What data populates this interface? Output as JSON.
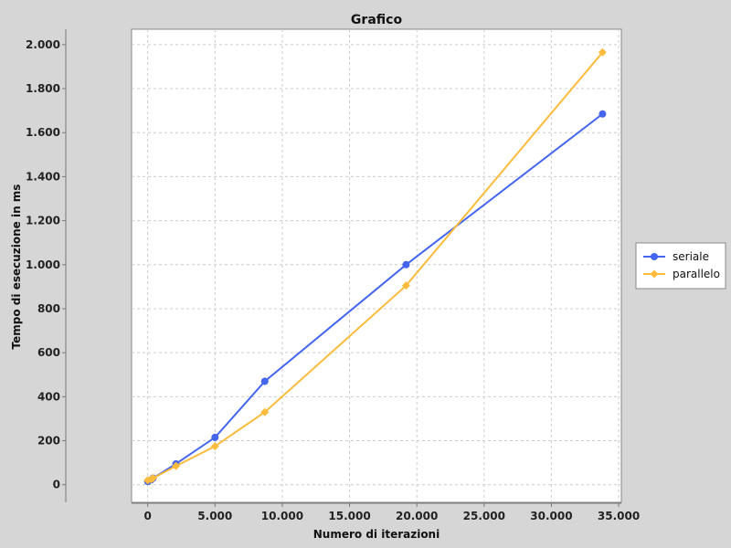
{
  "chart_data": {
    "type": "line",
    "title": "Grafico",
    "xlabel": "Numero di iterazioni",
    "ylabel": "Tempo di esecuzione in ms",
    "xlim": [
      -1200,
      35200
    ],
    "ylim": [
      -80,
      2070
    ],
    "x_ticks": [
      0,
      5000,
      10000,
      15000,
      20000,
      25000,
      30000,
      35000
    ],
    "x_tick_labels": [
      "0",
      "5.000",
      "10.000",
      "15.000",
      "20.000",
      "25.000",
      "30.000",
      "35.000"
    ],
    "y_ticks": [
      0,
      200,
      400,
      600,
      800,
      1000,
      1200,
      1400,
      1600,
      1800,
      2000
    ],
    "y_tick_labels": [
      "0",
      "200",
      "400",
      "600",
      "800",
      "1.000",
      "1.200",
      "1.400",
      "1.600",
      "1.800",
      "2.000"
    ],
    "grid": true,
    "legend_position": "right",
    "series": [
      {
        "name": "seriale",
        "color": "#4466ee",
        "marker": "circle",
        "points": [
          [
            0,
            15
          ],
          [
            250,
            22
          ],
          [
            400,
            30
          ],
          [
            2100,
            95
          ],
          [
            5000,
            215
          ],
          [
            8700,
            470
          ],
          [
            19200,
            1000
          ],
          [
            33800,
            1685
          ]
        ]
      },
      {
        "name": "parallelo",
        "color": "#fbbc3d",
        "marker": "diamond",
        "points": [
          [
            0,
            20
          ],
          [
            250,
            25
          ],
          [
            400,
            30
          ],
          [
            2100,
            85
          ],
          [
            5000,
            175
          ],
          [
            8700,
            330
          ],
          [
            19200,
            905
          ],
          [
            33800,
            1965
          ]
        ]
      }
    ]
  }
}
